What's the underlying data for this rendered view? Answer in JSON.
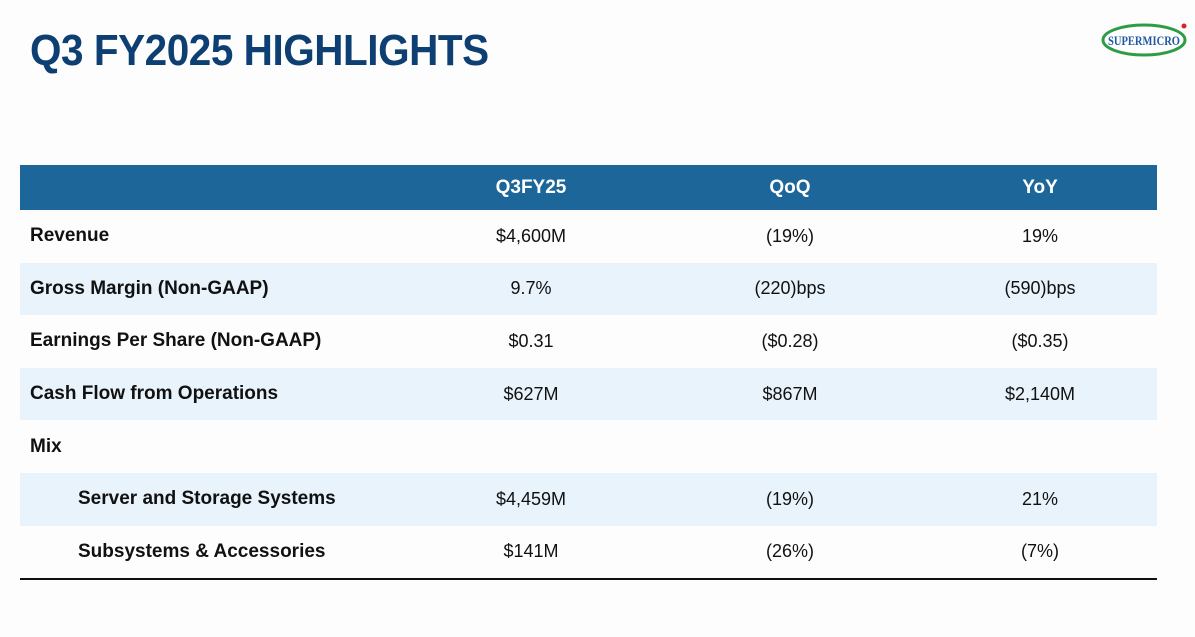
{
  "header": {
    "title": "Q3 FY2025 HIGHLIGHTS",
    "logo": "SUPERMICRO"
  },
  "table": {
    "columns": [
      "Q3FY25",
      "QoQ",
      "YoY"
    ],
    "rows": [
      {
        "label": "Revenue",
        "cells": [
          "$4,600M",
          "(19%)",
          "19%"
        ]
      },
      {
        "label": "Gross Margin (Non-GAAP)",
        "cells": [
          "9.7%",
          "(220)bps",
          "(590)bps"
        ]
      },
      {
        "label": "Earnings Per Share (Non-GAAP)",
        "cells": [
          "$0.31",
          "($0.28)",
          "($0.35)"
        ]
      },
      {
        "label": "Cash Flow from Operations",
        "cells": [
          "$627M",
          "$867M",
          "$2,140M"
        ]
      },
      {
        "label": "Mix",
        "children": [
          {
            "label": "Server and Storage Systems",
            "cells": [
              "$4,459M",
              "(19%)",
              "21%"
            ]
          },
          {
            "label": "Subsystems & Accessories",
            "cells": [
              "$141M",
              "(26%)",
              "(7%)"
            ]
          }
        ]
      }
    ]
  }
}
